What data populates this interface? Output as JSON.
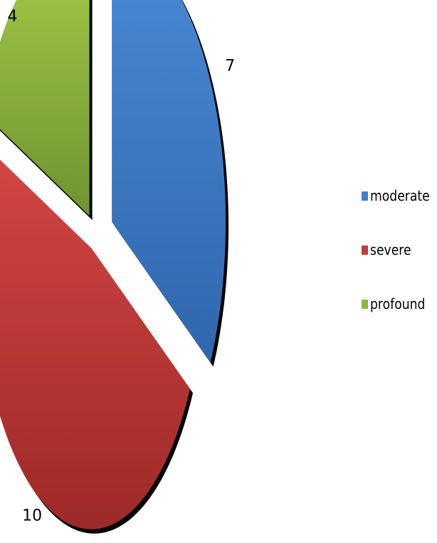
{
  "chart_data": {
    "type": "pie",
    "title": "",
    "categories": [
      "moderate",
      "severe",
      "profound"
    ],
    "values": [
      7,
      10,
      4
    ],
    "colors": [
      "#3f7fcf",
      "#c43a38",
      "#8eb83e"
    ],
    "exploded": true,
    "legend_position": "right",
    "data_labels": [
      "7",
      "10",
      "4"
    ]
  }
}
